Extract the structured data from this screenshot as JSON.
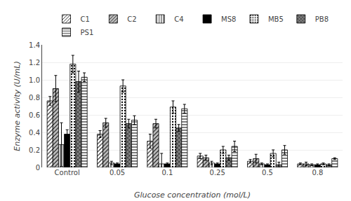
{
  "chart_data": {
    "type": "bar",
    "categories": [
      "Control",
      "0.05",
      "0.1",
      "0.25",
      "0.5",
      "0.8"
    ],
    "series": [
      {
        "name": "C1",
        "color": "white",
        "values": [
          0.76,
          0.38,
          0.3,
          0.13,
          0.07,
          0.04
        ],
        "errors": [
          0.05,
          0.04,
          0.08,
          0.03,
          0.02,
          0.01
        ]
      },
      {
        "name": "C2",
        "color": "silver",
        "values": [
          0.9,
          0.51,
          0.5,
          0.11,
          0.1,
          0.04
        ],
        "errors": [
          0.15,
          0.05,
          0.05,
          0.03,
          0.05,
          0.02
        ]
      },
      {
        "name": "C4",
        "color": "white",
        "values": [
          0.26,
          0.05,
          0.04,
          0.05,
          0.04,
          0.03
        ],
        "errors": [
          0.25,
          0.02,
          0.12,
          0.02,
          0.01,
          0.01
        ]
      },
      {
        "name": "MS8",
        "color": "black",
        "values": [
          0.38,
          0.04,
          0.04,
          0.04,
          0.03,
          0.03
        ],
        "errors": [
          0.05,
          0.01,
          0.01,
          0.01,
          0.01,
          0.01
        ]
      },
      {
        "name": "MB5",
        "color": "white",
        "values": [
          1.18,
          0.93,
          0.69,
          0.2,
          0.16,
          0.04
        ],
        "errors": [
          0.1,
          0.07,
          0.07,
          0.04,
          0.04,
          0.01
        ]
      },
      {
        "name": "PB8",
        "color": "gray",
        "values": [
          0.98,
          0.5,
          0.45,
          0.11,
          0.03,
          0.03
        ],
        "errors": [
          0.12,
          0.05,
          0.04,
          0.03,
          0.03,
          0.01
        ]
      },
      {
        "name": "PS1",
        "color": "white",
        "values": [
          1.03,
          0.54,
          0.67,
          0.24,
          0.2,
          0.1
        ],
        "errors": [
          0.05,
          0.05,
          0.05,
          0.06,
          0.05,
          0.01
        ]
      }
    ],
    "xlabel": "Glucose concentration (mol/L)",
    "ylabel": "Enzyme activity (U/mL)",
    "ylim": [
      0,
      1.4
    ],
    "yticks": [
      0,
      0.2,
      0.4,
      0.6,
      0.8,
      {
        "value": 1,
        "label": "1.0"
      },
      1.2,
      1.4
    ],
    "grid": true,
    "legend": "top"
  }
}
